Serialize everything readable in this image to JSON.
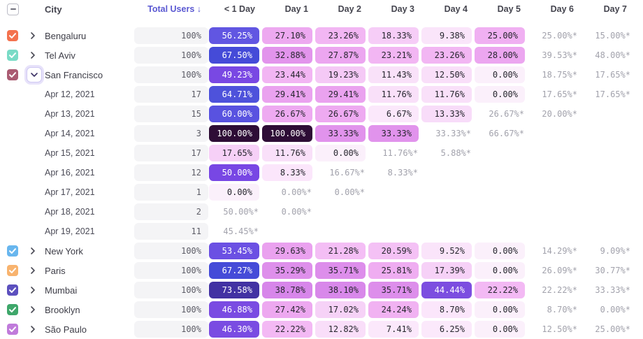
{
  "table": {
    "columns": {
      "city": "City",
      "total_users": "Total Users ↓",
      "days": [
        "< 1 Day",
        "Day 1",
        "Day 2",
        "Day 3",
        "Day 4",
        "Day 5",
        "Day 6",
        "Day 7"
      ]
    },
    "select_all_state": "indeterminate",
    "rows": [
      {
        "type": "city",
        "label": "Bengaluru",
        "checkbox_color": "#F4724E",
        "expanded": false,
        "total": "100%",
        "cells": [
          "56.25%",
          "27.10%",
          "23.26%",
          "18.33%",
          "9.38%",
          "25.00%",
          "25.00%*",
          "15.00%*"
        ]
      },
      {
        "type": "city",
        "label": "Tel Aviv",
        "checkbox_color": "#79DBC6",
        "expanded": false,
        "total": "100%",
        "cells": [
          "67.50%",
          "32.88%",
          "27.87%",
          "23.21%",
          "23.26%",
          "28.00%",
          "39.53%*",
          "48.00%*"
        ]
      },
      {
        "type": "city",
        "label": "San Francisco",
        "checkbox_color": "#AA5B72",
        "expanded": true,
        "total": "100%",
        "cells": [
          "49.23%",
          "23.44%",
          "19.23%",
          "11.43%",
          "12.50%",
          "0.00%",
          "18.75%*",
          "17.65%*"
        ]
      },
      {
        "type": "date",
        "label": "Apr 12, 2021",
        "total": "17",
        "cells": [
          "64.71%",
          "29.41%",
          "29.41%",
          "11.76%",
          "11.76%",
          "0.00%",
          "17.65%*",
          "17.65%*"
        ]
      },
      {
        "type": "date",
        "label": "Apr 13, 2021",
        "total": "15",
        "cells": [
          "60.00%",
          "26.67%",
          "26.67%",
          "6.67%",
          "13.33%",
          "26.67%*",
          "20.00%*",
          ""
        ]
      },
      {
        "type": "date",
        "label": "Apr 14, 2021",
        "total": "3",
        "cells": [
          "100.00%",
          "100.00%",
          "33.33%",
          "33.33%",
          "33.33%*",
          "66.67%*",
          "",
          ""
        ]
      },
      {
        "type": "date",
        "label": "Apr 15, 2021",
        "total": "17",
        "cells": [
          "17.65%",
          "11.76%",
          "0.00%",
          "11.76%*",
          "5.88%*",
          "",
          "",
          ""
        ]
      },
      {
        "type": "date",
        "label": "Apr 16, 2021",
        "total": "12",
        "cells": [
          "50.00%",
          "8.33%",
          "16.67%*",
          "8.33%*",
          "",
          "",
          "",
          ""
        ]
      },
      {
        "type": "date",
        "label": "Apr 17, 2021",
        "total": "1",
        "cells": [
          "0.00%",
          "0.00%*",
          "0.00%*",
          "",
          "",
          "",
          "",
          ""
        ]
      },
      {
        "type": "date",
        "label": "Apr 18, 2021",
        "total": "2",
        "cells": [
          "50.00%*",
          "0.00%*",
          "",
          "",
          "",
          "",
          "",
          ""
        ]
      },
      {
        "type": "date",
        "label": "Apr 19, 2021",
        "total": "11",
        "cells": [
          "45.45%*",
          "",
          "",
          "",
          "",
          "",
          "",
          ""
        ]
      },
      {
        "type": "city",
        "label": "New York",
        "checkbox_color": "#68B6EE",
        "expanded": false,
        "total": "100%",
        "cells": [
          "53.45%",
          "29.63%",
          "21.28%",
          "20.59%",
          "9.52%",
          "0.00%",
          "14.29%*",
          "9.09%*"
        ]
      },
      {
        "type": "city",
        "label": "Paris",
        "checkbox_color": "#F8B36E",
        "expanded": false,
        "total": "100%",
        "cells": [
          "67.27%",
          "35.29%",
          "35.71%",
          "25.81%",
          "17.39%",
          "0.00%",
          "26.09%*",
          "30.77%*"
        ]
      },
      {
        "type": "city",
        "label": "Mumbai",
        "checkbox_color": "#5C50BE",
        "expanded": false,
        "total": "100%",
        "cells": [
          "73.58%",
          "38.78%",
          "38.10%",
          "35.71%",
          "44.44%",
          "22.22%",
          "22.22%*",
          "33.33%*"
        ]
      },
      {
        "type": "city",
        "label": "Brooklyn",
        "checkbox_color": "#3EA76A",
        "expanded": false,
        "total": "100%",
        "cells": [
          "46.88%",
          "27.42%",
          "17.02%",
          "24.24%",
          "8.70%",
          "0.00%",
          "8.70%*",
          "0.00%*"
        ]
      },
      {
        "type": "city",
        "label": "São Paulo",
        "checkbox_color": "#C07BDB",
        "expanded": false,
        "total": "100%",
        "cells": [
          "46.30%",
          "22.22%",
          "12.82%",
          "7.41%",
          "6.25%",
          "0.00%",
          "12.50%*",
          "25.00%*"
        ]
      }
    ]
  },
  "heatmap": {
    "stops": [
      [
        0,
        "#FBF0FB"
      ],
      [
        8,
        "#FBE7FB"
      ],
      [
        12,
        "#F9E0F9"
      ],
      [
        18,
        "#F6CFF7"
      ],
      [
        22,
        "#F3BAF4"
      ],
      [
        26,
        "#EFACF1"
      ],
      [
        30,
        "#E9A0EF"
      ],
      [
        33,
        "#E294EC"
      ],
      [
        36,
        "#DD8DEB"
      ],
      [
        40,
        "#D483E9"
      ],
      [
        44,
        "#7C4FE0"
      ],
      [
        50,
        "#7847E4"
      ],
      [
        56,
        "#6256E2"
      ],
      [
        61,
        "#5751DF"
      ],
      [
        65,
        "#4D52DB"
      ],
      [
        68,
        "#4349D7"
      ],
      [
        74,
        "#42309F"
      ],
      [
        100,
        "#2E0D36"
      ]
    ],
    "estimated_text_color": "#A2A2AC",
    "dark_text": "#26262E",
    "light_text": "#FFFFFF"
  }
}
